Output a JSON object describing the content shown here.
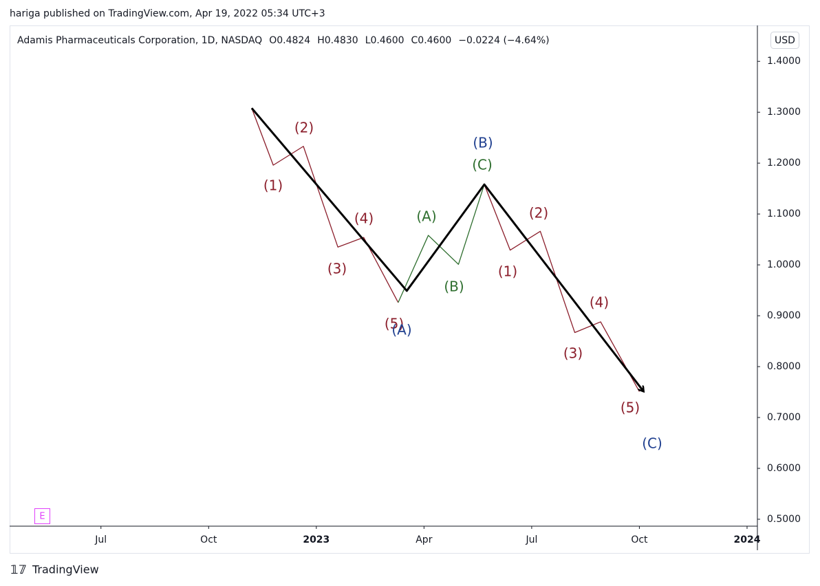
{
  "header": {
    "publisher": "hariga published on TradingView.com, Apr 19, 2022 05:34 UTC+3",
    "symbol": "Adamis Pharmaceuticals Corporation, 1D, NASDAQ",
    "ohlc": [
      "O0.4824",
      "H0.4830",
      "L0.4600",
      "C0.4600",
      "−0.0224 (−4.64%)"
    ],
    "currency": "USD",
    "badge": "E"
  },
  "footer": {
    "brand": "TradingView"
  },
  "chart_data": {
    "type": "line",
    "grid": false,
    "xlim": [
      2022.288,
      2024.024
    ],
    "xticks": [
      {
        "value": 2022.5,
        "label": "Jul"
      },
      {
        "value": 2022.75,
        "label": "Oct"
      },
      2023,
      {
        "value": 2023.25,
        "label": "Apr"
      },
      {
        "value": 2023.5,
        "label": "Jul"
      },
      {
        "value": 2023.75,
        "label": "Oct"
      },
      2024
    ],
    "ylim": [
      0.4864,
      1.4706
    ],
    "yticks": [
      {
        "value": 0.5,
        "label": "0.5000"
      },
      {
        "value": 0.6,
        "label": "0.6000"
      },
      {
        "value": 0.7,
        "label": "0.7000"
      },
      {
        "value": 0.8,
        "label": "0.8000"
      },
      {
        "value": 0.9,
        "label": "0.9000"
      },
      {
        "value": 1.0,
        "label": "1.0000"
      },
      {
        "value": 1.1,
        "label": "1.1000"
      },
      {
        "value": 1.2,
        "label": "1.2000"
      },
      {
        "value": 1.3,
        "label": "1.3000"
      },
      {
        "value": 1.4,
        "label": "1.4000"
      }
    ],
    "series": [
      {
        "color": "#8b1e2b",
        "x": [
          2022.85,
          2022.9,
          2022.97,
          2023.05,
          2023.11,
          2023.19
        ],
        "values": [
          1.308,
          1.196,
          1.233,
          1.035,
          1.054,
          0.926
        ]
      },
      {
        "color": "#2e6e2e",
        "x": [
          2023.19,
          2023.26,
          2023.33,
          2023.39
        ],
        "values": [
          0.926,
          1.058,
          1.001,
          1.158
        ]
      },
      {
        "color": "#8b1e2b",
        "x": [
          2023.39,
          2023.45,
          2023.52,
          2023.6,
          2023.66,
          2023.75
        ],
        "values": [
          1.158,
          1.029,
          1.066,
          0.867,
          0.888,
          0.751
        ]
      },
      {
        "color": "#000000",
        "x": [
          2022.85,
          2023.21,
          2023.39,
          2023.76
        ],
        "values": [
          1.308,
          0.949,
          1.158,
          0.751
        ]
      }
    ],
    "annotations": [
      {
        "text": "(1)",
        "color": "#8b1e2b"
      },
      {
        "text": "(2)",
        "color": "#8b1e2b"
      },
      {
        "text": "(3)",
        "color": "#8b1e2b"
      },
      {
        "text": "(4)",
        "color": "#8b1e2b"
      },
      {
        "text": "(5)",
        "color": "#8b1e2b"
      },
      {
        "text": "(A)",
        "color": "#1f3f8f"
      },
      {
        "text": "(A)",
        "color": "#2e6e2e"
      },
      {
        "text": "(B)",
        "color": "#2e6e2e"
      },
      {
        "text": "(C)",
        "color": "#2e6e2e"
      },
      {
        "text": "(B)",
        "color": "#1f3f8f"
      },
      {
        "text": "(1)",
        "color": "#8b1e2b"
      },
      {
        "text": "(2)",
        "color": "#8b1e2b"
      },
      {
        "text": "(3)",
        "color": "#8b1e2b"
      },
      {
        "text": "(4)",
        "color": "#8b1e2b"
      },
      {
        "text": "(5)",
        "color": "#8b1e2b"
      },
      {
        "text": "(C)",
        "color": "#1f3f8f"
      }
    ]
  }
}
